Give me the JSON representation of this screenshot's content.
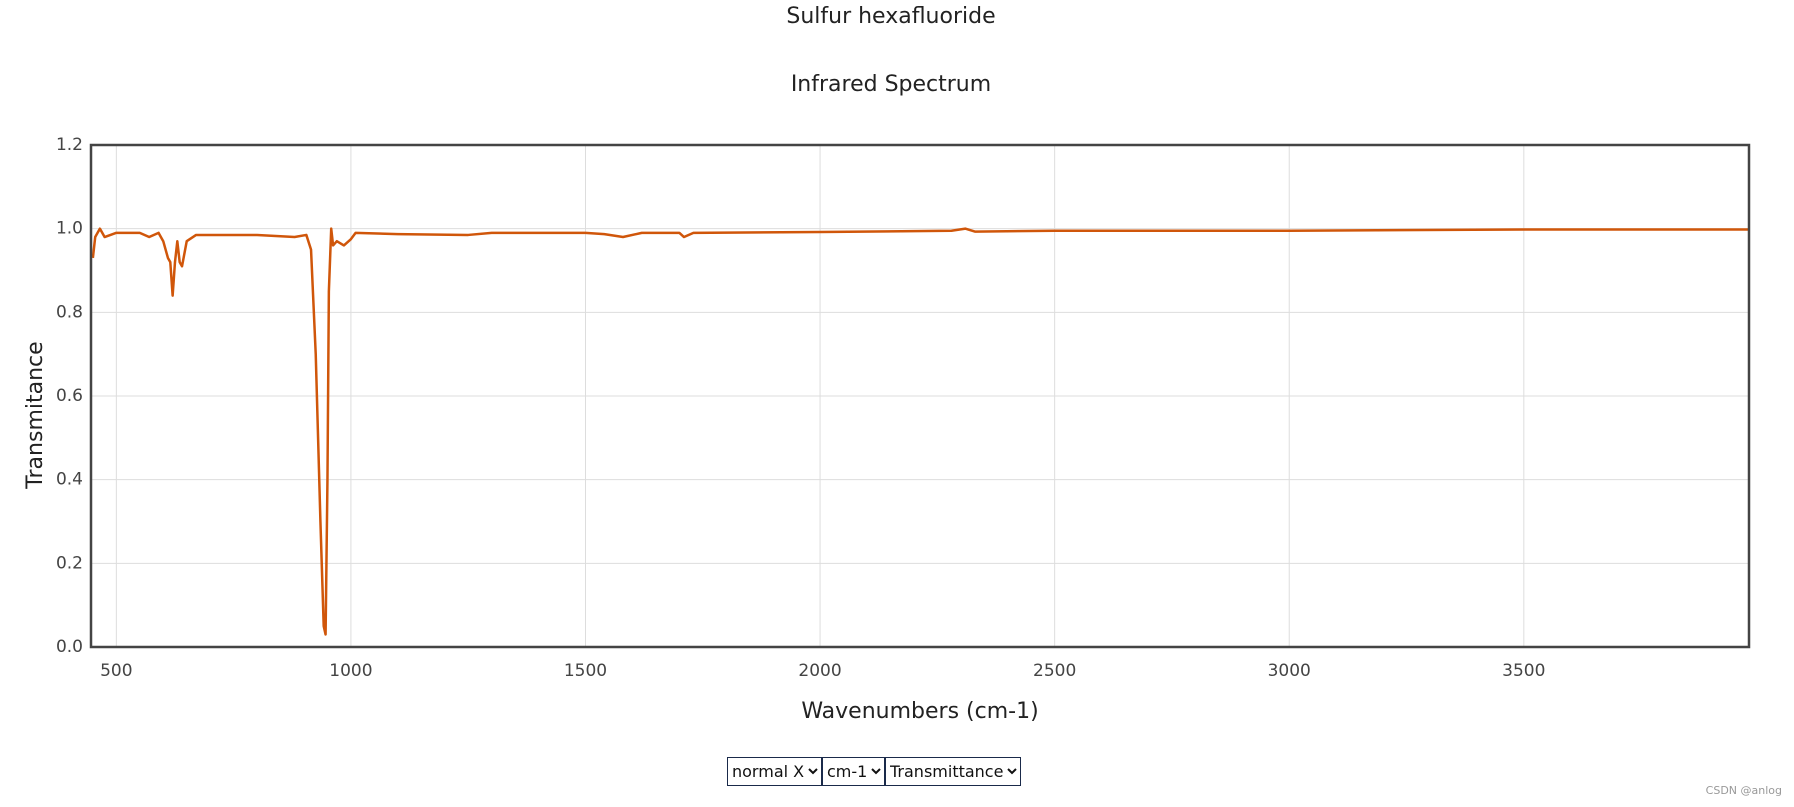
{
  "chart_data": {
    "type": "line",
    "title": "Sulfur hexafluoride",
    "subtitle": "Infrared Spectrum",
    "x_label": "Wavenumbers (cm-1)",
    "y_label": "Transmitance",
    "x": [
      450,
      455,
      465,
      475,
      500,
      550,
      570,
      590,
      600,
      610,
      615,
      620,
      625,
      630,
      635,
      640,
      650,
      670,
      700,
      800,
      880,
      905,
      915,
      925,
      935,
      942,
      946,
      950,
      953,
      958,
      962,
      970,
      985,
      1000,
      1010,
      1100,
      1250,
      1300,
      1500,
      1540,
      1580,
      1620,
      1700,
      1710,
      1730,
      2000,
      2280,
      2310,
      2330,
      2500,
      3000,
      3500,
      3980
    ],
    "series": [
      {
        "color": "#d0560a",
        "values": [
          0.93,
          0.98,
          1.0,
          0.98,
          0.99,
          0.99,
          0.98,
          0.99,
          0.97,
          0.93,
          0.92,
          0.84,
          0.92,
          0.97,
          0.92,
          0.91,
          0.97,
          0.985,
          0.985,
          0.985,
          0.98,
          0.985,
          0.95,
          0.7,
          0.3,
          0.05,
          0.03,
          0.4,
          0.85,
          1.0,
          0.96,
          0.97,
          0.96,
          0.975,
          0.99,
          0.987,
          0.985,
          0.99,
          0.99,
          0.987,
          0.98,
          0.99,
          0.99,
          0.98,
          0.99,
          0.992,
          0.995,
          1.0,
          0.993,
          0.995,
          0.995,
          0.998,
          0.998
        ]
      }
    ],
    "xlim": [
      446,
      3980
    ],
    "ylim": [
      0,
      1.2
    ],
    "xticks": [
      500,
      1000,
      1500,
      2000,
      2500,
      3000,
      3500
    ],
    "yticks": [
      {
        "value": 0,
        "label": "0.0"
      },
      0.2,
      0.4,
      0.6,
      0.8,
      {
        "value": 1,
        "label": "1.0"
      },
      1.2
    ],
    "grid": true
  },
  "controls": [
    "normal X",
    "cm-1",
    "Transmittance"
  ],
  "watermark": "CSDN @anlog"
}
